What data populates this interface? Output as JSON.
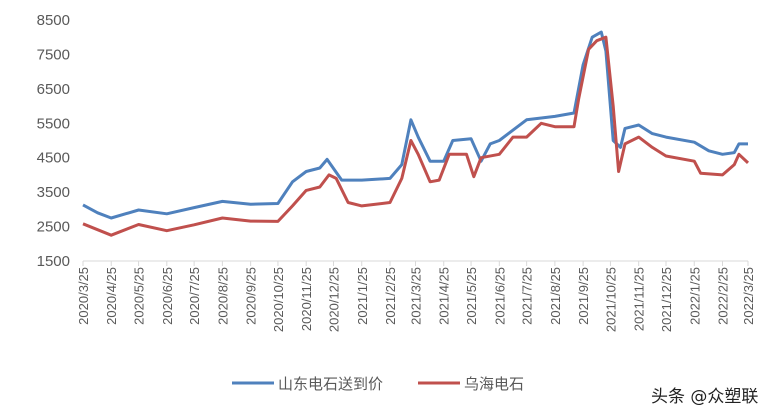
{
  "chart_data": {
    "type": "line",
    "title": "",
    "xlabel": "",
    "ylabel": "",
    "ylim": [
      1500,
      8500
    ],
    "yticks": [
      "1500",
      "2500",
      "3500",
      "4500",
      "5500",
      "6500",
      "7500",
      "8500"
    ],
    "xticks": [
      "2020/3/25",
      "2020/4/25",
      "2020/5/25",
      "2020/6/25",
      "2020/7/25",
      "2020/8/25",
      "2020/9/25",
      "2020/10/25",
      "2020/11/25",
      "2020/12/25",
      "2021/1/25",
      "2021/2/25",
      "2021/3/25",
      "2021/4/25",
      "2021/5/25",
      "2021/6/25",
      "2021/7/25",
      "2021/8/25",
      "2021/9/25",
      "2021/10/25",
      "2021/11/25",
      "2021/12/25",
      "2022/1/25",
      "2022/2/25",
      "2022/3/25"
    ],
    "grid": false,
    "legend_position": "bottom",
    "series": [
      {
        "name": "山东电石送到价",
        "color": "#4F81BD",
        "points": [
          [
            "2020/3/25",
            3130
          ],
          [
            "2020/4/10",
            2900
          ],
          [
            "2020/4/25",
            2750
          ],
          [
            "2020/5/25",
            2980
          ],
          [
            "2020/6/25",
            2870
          ],
          [
            "2020/7/25",
            3050
          ],
          [
            "2020/8/25",
            3230
          ],
          [
            "2020/9/25",
            3150
          ],
          [
            "2020/10/25",
            3170
          ],
          [
            "2020/11/10",
            3800
          ],
          [
            "2020/11/25",
            4100
          ],
          [
            "2020/12/10",
            4200
          ],
          [
            "2020/12/18",
            4450
          ],
          [
            "2021/1/3",
            3850
          ],
          [
            "2021/1/25",
            3850
          ],
          [
            "2021/2/25",
            3900
          ],
          [
            "2021/3/10",
            4300
          ],
          [
            "2021/3/20",
            5600
          ],
          [
            "2021/3/28",
            5100
          ],
          [
            "2021/4/10",
            4400
          ],
          [
            "2021/4/25",
            4400
          ],
          [
            "2021/5/5",
            5000
          ],
          [
            "2021/5/25",
            5050
          ],
          [
            "2021/6/5",
            4400
          ],
          [
            "2021/6/15",
            4900
          ],
          [
            "2021/6/25",
            5000
          ],
          [
            "2021/7/25",
            5600
          ],
          [
            "2021/8/25",
            5700
          ],
          [
            "2021/9/15",
            5800
          ],
          [
            "2021/9/25",
            7200
          ],
          [
            "2021/10/5",
            8000
          ],
          [
            "2021/10/15",
            8150
          ],
          [
            "2021/10/20",
            7600
          ],
          [
            "2021/10/28",
            5000
          ],
          [
            "2021/11/5",
            4800
          ],
          [
            "2021/11/10",
            5350
          ],
          [
            "2021/11/25",
            5450
          ],
          [
            "2021/12/10",
            5200
          ],
          [
            "2021/12/25",
            5100
          ],
          [
            "2022/1/25",
            4950
          ],
          [
            "2022/2/10",
            4700
          ],
          [
            "2022/2/25",
            4600
          ],
          [
            "2022/3/10",
            4650
          ],
          [
            "2022/3/15",
            4900
          ],
          [
            "2022/3/25",
            4900
          ]
        ]
      },
      {
        "name": "乌海电石",
        "color": "#C0504D",
        "points": [
          [
            "2020/3/25",
            2580
          ],
          [
            "2020/4/25",
            2250
          ],
          [
            "2020/5/25",
            2560
          ],
          [
            "2020/6/25",
            2380
          ],
          [
            "2020/7/25",
            2550
          ],
          [
            "2020/8/25",
            2750
          ],
          [
            "2020/9/25",
            2660
          ],
          [
            "2020/10/25",
            2650
          ],
          [
            "2020/11/10",
            3100
          ],
          [
            "2020/11/25",
            3550
          ],
          [
            "2020/12/10",
            3650
          ],
          [
            "2020/12/20",
            4000
          ],
          [
            "2020/12/28",
            3900
          ],
          [
            "2021/1/10",
            3200
          ],
          [
            "2021/1/25",
            3100
          ],
          [
            "2021/2/25",
            3200
          ],
          [
            "2021/3/10",
            3900
          ],
          [
            "2021/3/20",
            5000
          ],
          [
            "2021/3/28",
            4600
          ],
          [
            "2021/4/10",
            3800
          ],
          [
            "2021/4/20",
            3850
          ],
          [
            "2021/5/1",
            4600
          ],
          [
            "2021/5/20",
            4600
          ],
          [
            "2021/5/28",
            3950
          ],
          [
            "2021/6/5",
            4500
          ],
          [
            "2021/6/25",
            4600
          ],
          [
            "2021/7/10",
            5100
          ],
          [
            "2021/7/25",
            5100
          ],
          [
            "2021/8/10",
            5500
          ],
          [
            "2021/8/25",
            5400
          ],
          [
            "2021/9/15",
            5400
          ],
          [
            "2021/9/20",
            6200
          ],
          [
            "2021/10/1",
            7650
          ],
          [
            "2021/10/10",
            7900
          ],
          [
            "2021/10/20",
            8000
          ],
          [
            "2021/10/28",
            6000
          ],
          [
            "2021/11/3",
            4100
          ],
          [
            "2021/11/10",
            4900
          ],
          [
            "2021/11/25",
            5100
          ],
          [
            "2021/12/10",
            4800
          ],
          [
            "2021/12/25",
            4550
          ],
          [
            "2022/1/25",
            4400
          ],
          [
            "2022/2/1",
            4050
          ],
          [
            "2022/2/25",
            4000
          ],
          [
            "2022/3/10",
            4300
          ],
          [
            "2022/3/15",
            4600
          ],
          [
            "2022/3/25",
            4350
          ]
        ]
      }
    ]
  },
  "watermark": "头条 @众塑联"
}
